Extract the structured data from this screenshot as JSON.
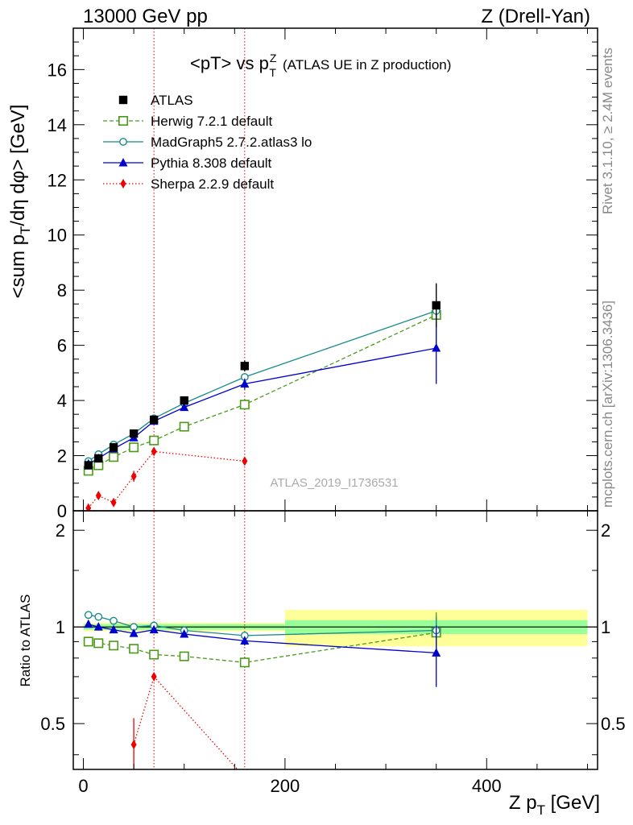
{
  "header": {
    "left": "13000 GeV pp",
    "right": "Z (Drell-Yan)"
  },
  "title": {
    "main": "<pT> vs p",
    "main_sup": "Z",
    "main_sub": "T",
    "suffix": "(ATLAS UE in Z production)"
  },
  "side_labels": {
    "rivet": "Rivet 3.1.10, ≥ 2.4M events",
    "mcplots": "mcplots.cern.ch [arXiv:1306.3436]"
  },
  "watermark": "ATLAS_2019_I1736531",
  "axes": {
    "ylabel_top": "<sum p_T/dη dφ> [GeV]",
    "ylabel_top_parts": {
      "a": "<sum p",
      "sub": "T",
      "b": "/dη dφ> [GeV]"
    },
    "ylabel_bottom": "Ratio to ATLAS",
    "xlabel_parts": {
      "a": "Z p",
      "sub": "T",
      "b": " [GeV]"
    }
  },
  "chart_data": {
    "type": "line",
    "x_range": [
      -10,
      510
    ],
    "top": {
      "ylim": [
        0,
        17.5
      ],
      "yticks": [
        0,
        2,
        4,
        6,
        8,
        10,
        12,
        14,
        16
      ],
      "ytick_labels": [
        "0",
        "2",
        "4",
        "6",
        "8",
        "10",
        "12",
        "14",
        "16"
      ]
    },
    "ratio": {
      "ylim": [
        0.36,
        2.3
      ],
      "scale": "log",
      "yticks": [
        0.5,
        1,
        2
      ],
      "ytick_labels": [
        "0.5",
        "1",
        "2"
      ]
    },
    "xticks": [
      0,
      200,
      400
    ],
    "xtick_labels": [
      "0",
      "200",
      "400"
    ],
    "vertical_lines": [
      70,
      160
    ],
    "x": [
      5,
      15,
      30,
      50,
      70,
      100,
      160,
      350
    ],
    "series": [
      {
        "name": "ATLAS",
        "color": "#000000",
        "marker": "square-filled",
        "line": "none",
        "values": [
          1.65,
          1.9,
          2.3,
          2.8,
          3.3,
          4.0,
          5.25,
          7.45
        ],
        "errors": [
          0.05,
          0.05,
          0.07,
          0.08,
          0.1,
          0.12,
          0.2,
          0.8
        ]
      },
      {
        "name": "Herwig 7.2.1 default",
        "color": "#4a9a1a",
        "marker": "square-open",
        "line": "dashed",
        "values": [
          1.45,
          1.65,
          1.95,
          2.3,
          2.55,
          3.05,
          3.85,
          7.1
        ],
        "errors": [
          0.03,
          0.03,
          0.05,
          0.05,
          0.05,
          0.08,
          0.2,
          1.1
        ],
        "ratio_values": [
          0.9,
          0.89,
          0.875,
          0.855,
          0.82,
          0.81,
          0.775,
          0.96
        ],
        "ratio_errors": [
          0.01,
          0.01,
          0.01,
          0.01,
          0.01,
          0.015,
          0.03,
          0.15
        ]
      },
      {
        "name": "MadGraph5 2.7.2.atlas3 lo",
        "color": "#1a8a8a",
        "marker": "circle-open",
        "line": "solid",
        "values": [
          1.8,
          2.05,
          2.4,
          2.8,
          3.35,
          3.9,
          4.85,
          7.25
        ],
        "errors": [
          0.02,
          0.02,
          0.03,
          0.03,
          0.04,
          0.05,
          0.08,
          0.3
        ],
        "ratio_values": [
          1.09,
          1.075,
          1.045,
          1.0,
          1.01,
          0.975,
          0.94,
          0.975
        ],
        "ratio_errors": [
          0.01,
          0.01,
          0.01,
          0.01,
          0.01,
          0.01,
          0.02,
          0.1
        ]
      },
      {
        "name": "Pythia 8.308 default",
        "color": "#0000cc",
        "marker": "triangle-filled",
        "line": "solid",
        "values": [
          1.7,
          1.9,
          2.25,
          2.65,
          3.25,
          3.75,
          4.6,
          5.9
        ],
        "errors": [
          0.02,
          0.02,
          0.03,
          0.04,
          0.05,
          0.07,
          0.2,
          1.3
        ],
        "ratio_values": [
          1.02,
          1.0,
          0.98,
          0.955,
          0.98,
          0.95,
          0.905,
          0.83
        ],
        "ratio_errors": [
          0.01,
          0.01,
          0.01,
          0.01,
          0.01,
          0.01,
          0.03,
          0.18
        ]
      },
      {
        "name": "Sherpa 2.2.9 default",
        "color": "#ee0000",
        "marker": "diamond-filled",
        "line": "dotted",
        "values": [
          0.1,
          0.55,
          0.3,
          1.25,
          2.15,
          null,
          1.8,
          null
        ],
        "errors": [
          0.05,
          0.1,
          0.1,
          0.2,
          0.1,
          null,
          0.1,
          null
        ],
        "ratio_values": [
          null,
          null,
          null,
          0.43,
          0.7,
          null,
          0.34,
          null
        ],
        "ratio_errors": [
          null,
          null,
          null,
          0.09,
          0.02,
          null,
          0.02,
          null
        ]
      }
    ],
    "ratio_bands": [
      {
        "x0": 0,
        "x1": 200,
        "inner": 0.02,
        "outer": 0.03
      },
      {
        "x0": 200,
        "x1": 500,
        "inner": 0.05,
        "outer": 0.13
      }
    ]
  }
}
